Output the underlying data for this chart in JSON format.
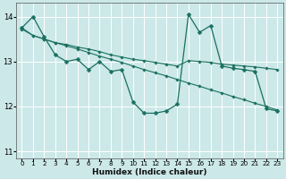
{
  "xlabel": "Humidex (Indice chaleur)",
  "bg_color": "#cce8e8",
  "grid_color": "#ffffff",
  "line_color": "#1a7060",
  "xlim": [
    -0.5,
    23.5
  ],
  "ylim": [
    10.85,
    14.3
  ],
  "yticks": [
    11,
    12,
    13,
    14
  ],
  "xticks": [
    0,
    1,
    2,
    3,
    4,
    5,
    6,
    7,
    8,
    9,
    10,
    11,
    12,
    13,
    14,
    15,
    16,
    17,
    18,
    19,
    20,
    21,
    22,
    23
  ],
  "series1_x": [
    0,
    1,
    2,
    3,
    4,
    5,
    6,
    7,
    8,
    9,
    10,
    11,
    12,
    13,
    14,
    15,
    16,
    17,
    18,
    19,
    20,
    21,
    22,
    23
  ],
  "series1_y": [
    13.75,
    14.0,
    13.55,
    13.15,
    13.0,
    13.05,
    12.82,
    13.0,
    12.78,
    12.82,
    12.1,
    11.85,
    11.85,
    11.9,
    12.05,
    14.05,
    13.65,
    13.8,
    12.9,
    12.85,
    12.82,
    12.78,
    11.95,
    11.9
  ],
  "series2_x": [
    0,
    1,
    2,
    3,
    4,
    5,
    6,
    7,
    8,
    9,
    10,
    11,
    12,
    13,
    14,
    15,
    16,
    17,
    18,
    19,
    20,
    21,
    22,
    23
  ],
  "series2_y": [
    13.72,
    13.58,
    13.5,
    13.42,
    13.38,
    13.32,
    13.28,
    13.22,
    13.15,
    13.1,
    13.05,
    13.02,
    12.98,
    12.94,
    12.9,
    13.02,
    13.0,
    12.98,
    12.94,
    12.92,
    12.9,
    12.88,
    12.85,
    12.82
  ],
  "series3_x": [
    0,
    1,
    2,
    3,
    4,
    5,
    6,
    7,
    8,
    9,
    10,
    11,
    12,
    13,
    14,
    15,
    16,
    17,
    18,
    19,
    20,
    21,
    22,
    23
  ],
  "series3_y": [
    13.75,
    13.58,
    13.5,
    13.42,
    13.35,
    13.28,
    13.2,
    13.12,
    13.05,
    12.98,
    12.9,
    12.82,
    12.75,
    12.68,
    12.6,
    12.52,
    12.45,
    12.37,
    12.3,
    12.22,
    12.15,
    12.07,
    12.0,
    11.92
  ]
}
